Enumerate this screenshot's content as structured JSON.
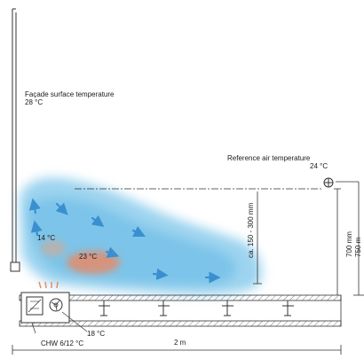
{
  "labels": {
    "facade_title": "Façade surface temperature",
    "facade_value": "28 °C",
    "reference_title": "Reference air temperature",
    "reference_value": "24 °C",
    "temp_14": "14 °C",
    "temp_23": "23 °C",
    "temp_18": "18 °C",
    "chw": "CHW 6/12 °C",
    "distance_2m": "2 m",
    "dim_150_300": "ca. 150 - 300 mm",
    "dim_700": "700 mm",
    "dim_750": "750 m"
  },
  "colors": {
    "cool_air": "#7cc6ea",
    "warm_air": "#e58b6a",
    "line": "#333333"
  },
  "icons": {
    "reference_sensor": "crosshair-circle-icon",
    "unit_panel": "heat-exchanger-icon",
    "fan": "fan-icon"
  }
}
